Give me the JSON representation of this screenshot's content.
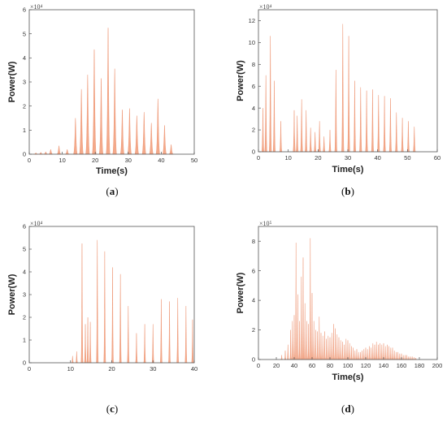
{
  "figure": {
    "fill_color": "#f3a98a",
    "stroke_color": "#ec8f6c",
    "axis_color": "#555555"
  },
  "chart_data": [
    {
      "type": "area",
      "caption": "(a)",
      "caption_letter": "a",
      "xlabel": "Time(s)",
      "ylabel": "Power(W)",
      "multiplier": "×10⁴",
      "xlim": [
        0,
        50
      ],
      "ylim": [
        0,
        6
      ],
      "xticks": [
        0,
        10,
        20,
        30,
        40,
        50
      ],
      "yticks": [
        0,
        1,
        2,
        3,
        4,
        5,
        6
      ],
      "peaks": [
        {
          "t": 2.0,
          "v": 0.06
        },
        {
          "t": 3.5,
          "v": 0.08
        },
        {
          "t": 5.0,
          "v": 0.1
        },
        {
          "t": 6.5,
          "v": 0.2
        },
        {
          "t": 9.0,
          "v": 0.35
        },
        {
          "t": 11.5,
          "v": 0.2
        },
        {
          "t": 14.0,
          "v": 1.5
        },
        {
          "t": 15.8,
          "v": 2.7
        },
        {
          "t": 17.7,
          "v": 3.3
        },
        {
          "t": 19.7,
          "v": 4.35
        },
        {
          "t": 21.8,
          "v": 3.15
        },
        {
          "t": 23.9,
          "v": 5.25
        },
        {
          "t": 25.9,
          "v": 3.55
        },
        {
          "t": 28.2,
          "v": 1.85
        },
        {
          "t": 30.4,
          "v": 1.9
        },
        {
          "t": 32.6,
          "v": 1.6
        },
        {
          "t": 34.8,
          "v": 1.75
        },
        {
          "t": 37.0,
          "v": 1.3
        },
        {
          "t": 39.0,
          "v": 2.3
        },
        {
          "t": 41.0,
          "v": 1.2
        },
        {
          "t": 43.0,
          "v": 0.4
        }
      ]
    },
    {
      "type": "area",
      "caption": "(b)",
      "caption_letter": "b",
      "xlabel": "Time(s)",
      "ylabel": "Power(W)",
      "multiplier": "×10⁴",
      "xlim": [
        0,
        60
      ],
      "ylim": [
        0,
        13
      ],
      "xticks": [
        0,
        10,
        20,
        30,
        40,
        50,
        60
      ],
      "yticks": [
        0,
        2,
        4,
        6,
        8,
        10,
        12
      ],
      "peaks": [
        {
          "t": 1.5,
          "v": 4.0
        },
        {
          "t": 2.5,
          "v": 7.0
        },
        {
          "t": 4.0,
          "v": 10.6
        },
        {
          "t": 5.3,
          "v": 6.5
        },
        {
          "t": 7.5,
          "v": 2.8
        },
        {
          "t": 12.0,
          "v": 3.8
        },
        {
          "t": 13.0,
          "v": 3.3
        },
        {
          "t": 14.5,
          "v": 4.8
        },
        {
          "t": 16.0,
          "v": 3.8
        },
        {
          "t": 17.5,
          "v": 2.2
        },
        {
          "t": 19.0,
          "v": 1.8
        },
        {
          "t": 20.5,
          "v": 2.8
        },
        {
          "t": 22.0,
          "v": 1.4
        },
        {
          "t": 24.0,
          "v": 2.0
        },
        {
          "t": 26.0,
          "v": 7.5
        },
        {
          "t": 28.3,
          "v": 11.7
        },
        {
          "t": 30.3,
          "v": 10.6
        },
        {
          "t": 32.3,
          "v": 6.5
        },
        {
          "t": 34.3,
          "v": 5.9
        },
        {
          "t": 36.3,
          "v": 5.6
        },
        {
          "t": 38.3,
          "v": 5.7
        },
        {
          "t": 40.3,
          "v": 5.2
        },
        {
          "t": 42.3,
          "v": 5.1
        },
        {
          "t": 44.3,
          "v": 4.9
        },
        {
          "t": 46.3,
          "v": 3.6
        },
        {
          "t": 48.3,
          "v": 3.1
        },
        {
          "t": 50.3,
          "v": 2.8
        },
        {
          "t": 52.3,
          "v": 2.3
        }
      ]
    },
    {
      "type": "area",
      "caption": "(c)",
      "caption_letter": "c",
      "xlabel": "",
      "ylabel": "Power(W)",
      "multiplier": "×10⁴",
      "xlim": [
        0,
        40
      ],
      "ylim": [
        0,
        6
      ],
      "xticks": [
        0,
        10,
        20,
        30,
        40
      ],
      "yticks": [
        0,
        1,
        2,
        3,
        4,
        5,
        6
      ],
      "peaks": [
        {
          "t": 10.5,
          "v": 0.3
        },
        {
          "t": 11.5,
          "v": 0.5
        },
        {
          "t": 12.8,
          "v": 5.25
        },
        {
          "t": 13.6,
          "v": 1.7
        },
        {
          "t": 14.2,
          "v": 2.0
        },
        {
          "t": 14.8,
          "v": 1.8
        },
        {
          "t": 16.5,
          "v": 5.4
        },
        {
          "t": 18.3,
          "v": 4.9
        },
        {
          "t": 20.2,
          "v": 4.2
        },
        {
          "t": 22.1,
          "v": 3.9
        },
        {
          "t": 24.0,
          "v": 2.5
        },
        {
          "t": 26.0,
          "v": 1.3
        },
        {
          "t": 28.0,
          "v": 1.7
        },
        {
          "t": 30.0,
          "v": 1.7
        },
        {
          "t": 32.0,
          "v": 2.8
        },
        {
          "t": 34.0,
          "v": 2.7
        },
        {
          "t": 36.0,
          "v": 2.85
        },
        {
          "t": 38.0,
          "v": 2.5
        },
        {
          "t": 39.6,
          "v": 1.9
        }
      ]
    },
    {
      "type": "area",
      "caption": "(d)",
      "caption_letter": "d",
      "xlabel": "Time(s)",
      "ylabel": "Power(W)",
      "multiplier": "×10⁵",
      "xlim": [
        0,
        200
      ],
      "ylim": [
        0,
        9
      ],
      "xticks": [
        0,
        20,
        40,
        60,
        80,
        100,
        120,
        140,
        160,
        180,
        200
      ],
      "yticks": [
        0,
        2,
        4,
        6,
        8
      ],
      "peaks": [
        {
          "t": 26,
          "v": 0.3
        },
        {
          "t": 30,
          "v": 0.6
        },
        {
          "t": 33,
          "v": 1.0
        },
        {
          "t": 36,
          "v": 2.0
        },
        {
          "t": 38,
          "v": 2.6
        },
        {
          "t": 40,
          "v": 3.0
        },
        {
          "t": 42,
          "v": 7.9
        },
        {
          "t": 44,
          "v": 4.4
        },
        {
          "t": 46,
          "v": 2.6
        },
        {
          "t": 48,
          "v": 5.6
        },
        {
          "t": 50,
          "v": 6.9
        },
        {
          "t": 52,
          "v": 3.8
        },
        {
          "t": 54,
          "v": 2.6
        },
        {
          "t": 56,
          "v": 2.4
        },
        {
          "t": 58,
          "v": 8.2
        },
        {
          "t": 60,
          "v": 4.5
        },
        {
          "t": 62,
          "v": 2.6
        },
        {
          "t": 64,
          "v": 2.0
        },
        {
          "t": 66,
          "v": 1.9
        },
        {
          "t": 68,
          "v": 2.9
        },
        {
          "t": 70,
          "v": 1.8
        },
        {
          "t": 72,
          "v": 1.6
        },
        {
          "t": 74,
          "v": 1.9
        },
        {
          "t": 76,
          "v": 1.4
        },
        {
          "t": 78,
          "v": 1.6
        },
        {
          "t": 80,
          "v": 1.5
        },
        {
          "t": 82,
          "v": 1.8
        },
        {
          "t": 84,
          "v": 2.4
        },
        {
          "t": 86,
          "v": 2.1
        },
        {
          "t": 88,
          "v": 1.7
        },
        {
          "t": 90,
          "v": 1.5
        },
        {
          "t": 92,
          "v": 1.3
        },
        {
          "t": 94,
          "v": 1.2
        },
        {
          "t": 96,
          "v": 1.0
        },
        {
          "t": 98,
          "v": 1.4
        },
        {
          "t": 100,
          "v": 1.3
        },
        {
          "t": 102,
          "v": 1.1
        },
        {
          "t": 104,
          "v": 0.9
        },
        {
          "t": 106,
          "v": 0.8
        },
        {
          "t": 108,
          "v": 0.6
        },
        {
          "t": 110,
          "v": 0.7
        },
        {
          "t": 112,
          "v": 0.5
        },
        {
          "t": 114,
          "v": 0.5
        },
        {
          "t": 116,
          "v": 0.6
        },
        {
          "t": 118,
          "v": 0.7
        },
        {
          "t": 120,
          "v": 0.8
        },
        {
          "t": 122,
          "v": 0.7
        },
        {
          "t": 124,
          "v": 0.9
        },
        {
          "t": 126,
          "v": 0.8
        },
        {
          "t": 128,
          "v": 1.1
        },
        {
          "t": 130,
          "v": 1.0
        },
        {
          "t": 132,
          "v": 1.2
        },
        {
          "t": 134,
          "v": 1.0
        },
        {
          "t": 136,
          "v": 1.1
        },
        {
          "t": 138,
          "v": 1.0
        },
        {
          "t": 140,
          "v": 1.1
        },
        {
          "t": 142,
          "v": 0.9
        },
        {
          "t": 144,
          "v": 1.0
        },
        {
          "t": 146,
          "v": 0.9
        },
        {
          "t": 148,
          "v": 0.8
        },
        {
          "t": 150,
          "v": 0.8
        },
        {
          "t": 152,
          "v": 0.6
        },
        {
          "t": 154,
          "v": 0.5
        },
        {
          "t": 156,
          "v": 0.5
        },
        {
          "t": 158,
          "v": 0.4
        },
        {
          "t": 160,
          "v": 0.4
        },
        {
          "t": 162,
          "v": 0.3
        },
        {
          "t": 164,
          "v": 0.3
        },
        {
          "t": 166,
          "v": 0.3
        },
        {
          "t": 168,
          "v": 0.2
        },
        {
          "t": 170,
          "v": 0.2
        },
        {
          "t": 172,
          "v": 0.2
        },
        {
          "t": 174,
          "v": 0.15
        },
        {
          "t": 176,
          "v": 0.1
        }
      ]
    }
  ]
}
